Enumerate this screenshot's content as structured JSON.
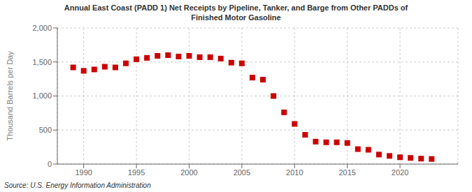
{
  "chart_data": {
    "type": "scatter",
    "title": "Annual East Coast (PADD 1) Net Receipts by Pipeline, Tanker, and Barge from Other PADDs of\nFinished Motor Gasoline",
    "ylabel": "Thousand Barrels per Day",
    "annotations": [
      "Source: U.S. Energy Information Administration"
    ],
    "x": [
      1989,
      1990,
      1991,
      1992,
      1993,
      1994,
      1995,
      1996,
      1997,
      1998,
      1999,
      2000,
      2001,
      2002,
      2003,
      2004,
      2005,
      2006,
      2007,
      2008,
      2009,
      2010,
      2011,
      2012,
      2013,
      2014,
      2015,
      2016,
      2017,
      2018,
      2019,
      2020,
      2021,
      2022,
      2023
    ],
    "values": [
      1420,
      1370,
      1390,
      1430,
      1420,
      1480,
      1540,
      1560,
      1590,
      1600,
      1580,
      1590,
      1570,
      1570,
      1550,
      1490,
      1480,
      1270,
      1240,
      1000,
      760,
      590,
      430,
      330,
      320,
      320,
      310,
      220,
      210,
      140,
      120,
      100,
      90,
      80,
      75
    ],
    "color": "#cc0000",
    "marker": "square",
    "xlim": [
      1987.5,
      2025.5
    ],
    "xticks": [
      1990,
      1995,
      2000,
      2005,
      2010,
      2015,
      2020
    ],
    "ylim": [
      0,
      2000
    ],
    "yticks": [
      0,
      500,
      {
        "value": 1000,
        "label": "1,000"
      },
      {
        "value": 1500,
        "label": "1,500"
      },
      {
        "value": 2000,
        "label": "2,000"
      }
    ],
    "grid": true
  }
}
